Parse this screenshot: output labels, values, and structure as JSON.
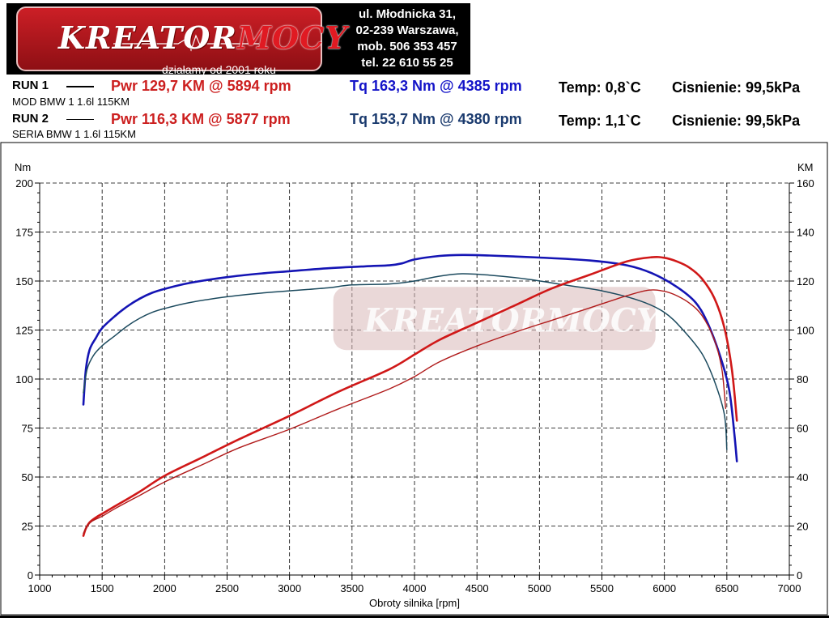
{
  "header": {
    "logo_word_1": "KREATOR",
    "logo_word_2": "MOCY",
    "logo_since": "działamy od 2001 roku",
    "address": [
      "ul. Młodnicka 31,",
      "02-239  Warszawa,",
      "mob.  506 353 457",
      "tel.  22 610 55 25"
    ]
  },
  "runs": [
    {
      "name": "RUN 1",
      "desc": "MOD BMW 1 1.6l 115KM",
      "pwr": "Pwr  129,7 KM @ 5894 rpm",
      "tq": "Tq 163,3 Nm @ 4385 rpm",
      "temp": "Temp: 0,8`C",
      "press": "Cisnienie: 99,5kPa",
      "tq_color": "#1414c8",
      "line_color": "#000000"
    },
    {
      "name": "RUN 2",
      "desc": "SERIA BMW 1 1.6l 115KM",
      "pwr": "Pwr  116,3 KM @ 5877 rpm",
      "tq": "Tq 153,7 Nm @ 4380 rpm",
      "temp": "Temp: 1,1`C",
      "press": "Cisnienie: 99,5kPa",
      "tq_color": "#1a3a6e",
      "line_color": "#000000"
    }
  ],
  "chart_data": {
    "type": "line",
    "title": "",
    "xlabel": "Obroty silnika [rpm]",
    "ylabel_left": "Nm",
    "ylabel_right": "KM",
    "xlim": [
      1000,
      7000
    ],
    "xticks": [
      1000,
      1500,
      2000,
      2500,
      3000,
      3500,
      4000,
      4500,
      5000,
      5500,
      6000,
      6500,
      7000
    ],
    "ylim_left": [
      0,
      200
    ],
    "yticks_left": [
      0,
      25,
      50,
      75,
      100,
      125,
      150,
      175,
      200
    ],
    "ylim_right": [
      0,
      160
    ],
    "yticks_right": [
      0,
      20,
      40,
      60,
      80,
      100,
      120,
      140,
      160
    ],
    "grid": true,
    "watermark": "KREATORMOCY",
    "series": [
      {
        "axis": "left",
        "color": "#1414b4",
        "width": 2.6,
        "x": [
          1350,
          1370,
          1400,
          1450,
          1500,
          1600,
          1700,
          1800,
          1900,
          2000,
          2200,
          2500,
          2800,
          3000,
          3300,
          3600,
          3800,
          3900,
          4000,
          4200,
          4385,
          4600,
          5000,
          5400,
          5700,
          5900,
          6100,
          6250,
          6350,
          6450,
          6520,
          6560,
          6580
        ],
        "y": [
          87,
          105,
          115,
          121,
          126,
          132,
          137,
          141,
          144,
          146,
          149,
          152,
          154,
          155,
          156.5,
          157.5,
          158,
          159,
          161,
          162.8,
          163.3,
          163,
          162,
          160.5,
          158,
          154,
          147,
          139,
          128,
          111,
          94,
          72,
          58
        ]
      },
      {
        "axis": "left",
        "color": "#1c4a5e",
        "width": 1.5,
        "x": [
          1350,
          1380,
          1430,
          1500,
          1600,
          1700,
          1800,
          1900,
          2000,
          2200,
          2500,
          2800,
          3000,
          3300,
          3500,
          3800,
          4000,
          4200,
          4380,
          4600,
          4900,
          5200,
          5500,
          5800,
          6000,
          6150,
          6300,
          6400,
          6480,
          6500
        ],
        "y": [
          93,
          105,
          112,
          117,
          122,
          127,
          131,
          134,
          136,
          139,
          142,
          144,
          145,
          146.5,
          148,
          148.5,
          150,
          152.5,
          153.7,
          153,
          151,
          148,
          145,
          140,
          134,
          125,
          113,
          99,
          82,
          64
        ]
      },
      {
        "axis": "right",
        "color": "#d01818",
        "width": 2.6,
        "x": [
          1350,
          1370,
          1400,
          1450,
          1500,
          1600,
          1800,
          2000,
          2300,
          2600,
          3000,
          3400,
          3800,
          4000,
          4200,
          4500,
          4800,
          5100,
          5400,
          5700,
          5894,
          6000,
          6100,
          6200,
          6300,
          6400,
          6480,
          6540,
          6580
        ],
        "y": [
          16,
          19,
          21.5,
          23.5,
          25,
          28,
          34,
          40.5,
          48,
          55.5,
          65,
          75,
          84,
          90,
          96,
          103,
          110,
          117,
          122.5,
          128,
          129.7,
          129.5,
          128,
          125.5,
          121,
          113,
          101,
          84,
          63
        ]
      },
      {
        "axis": "right",
        "color": "#b01a1a",
        "width": 1.4,
        "x": [
          1350,
          1380,
          1420,
          1500,
          1600,
          1800,
          2000,
          2300,
          2600,
          3000,
          3400,
          3800,
          4000,
          4200,
          4500,
          4800,
          5100,
          5400,
          5700,
          5877,
          6000,
          6100,
          6200,
          6300,
          6400,
          6460,
          6490
        ],
        "y": [
          17,
          20,
          22,
          24,
          27,
          32.5,
          38,
          45,
          52,
          59.5,
          68,
          76,
          81,
          87,
          93.5,
          99,
          104,
          109,
          114,
          116.3,
          115.8,
          114,
          111,
          106,
          96,
          84,
          68
        ]
      }
    ]
  }
}
